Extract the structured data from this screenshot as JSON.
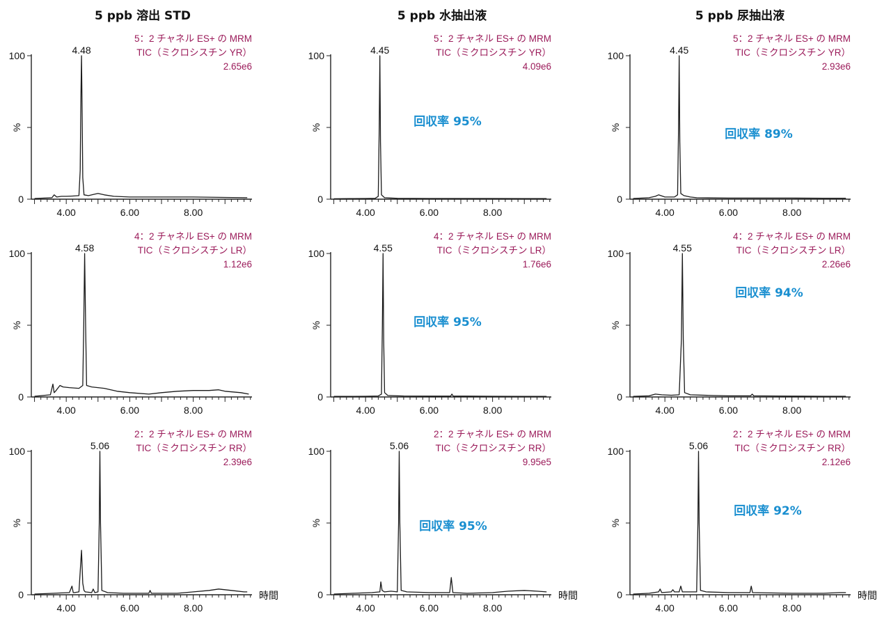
{
  "columns": [
    "5 ppb 溶出 STD",
    "5 ppb 水抽出液",
    "5 ppb 尿抽出液"
  ],
  "x_axis_label": "時間",
  "chart_data": [
    {
      "type": "line",
      "row": 0,
      "col": 0,
      "peak_rt": 4.48,
      "peak_label": "4.48",
      "info": [
        "5：2 チャネル ES+ の MRM",
        "TIC（ミクロシスチン YR）",
        "2.65e6"
      ],
      "recovery": "",
      "xticks": [
        "4.00",
        "6.00",
        "8.00"
      ],
      "yticks": [
        "0",
        "%",
        "100"
      ],
      "xlim": [
        2.9,
        9.85
      ],
      "ylim": [
        0,
        100
      ],
      "x": [
        3.0,
        3.55,
        3.62,
        3.7,
        3.85,
        4.0,
        4.2,
        4.4,
        4.44,
        4.46,
        4.48,
        4.5,
        4.52,
        4.56,
        4.7,
        4.9,
        5.0,
        5.2,
        5.5,
        6.0,
        7.0,
        8.0,
        9.0,
        9.7
      ],
      "y": [
        0.5,
        1,
        3,
        1.5,
        2,
        2,
        2.2,
        2.5,
        20,
        70,
        100,
        60,
        15,
        3,
        2.5,
        3.5,
        4,
        3,
        2,
        1.5,
        1.5,
        1.5,
        1.2,
        1
      ]
    },
    {
      "type": "line",
      "row": 0,
      "col": 1,
      "peak_rt": 4.45,
      "peak_label": "4.45",
      "info": [
        "5：2 チャネル ES+ の MRM",
        "TIC（ミクロシスチン YR）",
        "4.09e6"
      ],
      "recovery": "回収率 95%",
      "xticks": [
        "4.00",
        "6.00",
        "8.00"
      ],
      "yticks": [
        "0",
        "%",
        "100"
      ],
      "xlim": [
        2.9,
        9.85
      ],
      "ylim": [
        0,
        100
      ],
      "x": [
        3.0,
        3.5,
        4.0,
        4.3,
        4.4,
        4.43,
        4.45,
        4.47,
        4.5,
        4.6,
        5.0,
        6.0,
        7.0,
        8.0,
        9.0,
        9.7
      ],
      "y": [
        0.3,
        0.4,
        0.5,
        0.6,
        2,
        50,
        100,
        40,
        3,
        1,
        0.6,
        0.5,
        0.5,
        0.5,
        0.4,
        0.4
      ]
    },
    {
      "type": "line",
      "row": 0,
      "col": 2,
      "peak_rt": 4.45,
      "peak_label": "4.45",
      "info": [
        "5：2 チャネル ES+ の MRM",
        "TIC（ミクロシスチン YR）",
        "2.93e6"
      ],
      "recovery": "回収率 89%",
      "xticks": [
        "4.00",
        "6.00",
        "8.00"
      ],
      "yticks": [
        "0",
        "%",
        "100"
      ],
      "xlim": [
        2.9,
        9.85
      ],
      "ylim": [
        0,
        100
      ],
      "x": [
        3.0,
        3.5,
        3.7,
        3.8,
        4.0,
        4.3,
        4.4,
        4.43,
        4.45,
        4.47,
        4.5,
        4.6,
        4.8,
        5.0,
        6.0,
        7.0,
        8.0,
        9.0,
        9.7
      ],
      "y": [
        0.5,
        1,
        2,
        3,
        1.5,
        1.5,
        3,
        50,
        100,
        40,
        4,
        2.5,
        1.5,
        1,
        0.8,
        0.8,
        0.8,
        0.7,
        0.7
      ]
    },
    {
      "type": "line",
      "row": 1,
      "col": 0,
      "peak_rt": 4.58,
      "peak_label": "4.58",
      "info": [
        "4：2 チャネル ES+ の MRM",
        "TIC（ミクロシスチン LR）",
        "1.12e6"
      ],
      "recovery": "",
      "xticks": [
        "4.00",
        "6.00",
        "8.00"
      ],
      "yticks": [
        "0",
        "%",
        "100"
      ],
      "xlim": [
        2.9,
        9.85
      ],
      "ylim": [
        0,
        100
      ],
      "x": [
        3.0,
        3.5,
        3.58,
        3.62,
        3.66,
        3.8,
        3.9,
        4.1,
        4.4,
        4.52,
        4.55,
        4.58,
        4.61,
        4.64,
        4.8,
        5.2,
        5.6,
        6.0,
        6.6,
        7.0,
        7.5,
        8.0,
        8.5,
        8.8,
        9.0,
        9.5,
        9.75
      ],
      "y": [
        0.5,
        1.5,
        9,
        3,
        4,
        8,
        7,
        6.5,
        6,
        8,
        50,
        100,
        50,
        8,
        7,
        6,
        4,
        3,
        2,
        3,
        4,
        4.5,
        4.5,
        5,
        4,
        3,
        2
      ]
    },
    {
      "type": "line",
      "row": 1,
      "col": 1,
      "peak_rt": 4.55,
      "peak_label": "4.55",
      "info": [
        "4：2 チャネル ES+ の MRM",
        "TIC（ミクロシスチン LR）",
        "1.76e6"
      ],
      "recovery": "回収率 95%",
      "xticks": [
        "4.00",
        "6.00",
        "8.00"
      ],
      "yticks": [
        "0",
        "%",
        "100"
      ],
      "xlim": [
        2.9,
        9.85
      ],
      "ylim": [
        0,
        100
      ],
      "x": [
        3.0,
        3.6,
        4.0,
        4.4,
        4.5,
        4.53,
        4.55,
        4.57,
        4.6,
        4.7,
        5.2,
        6.0,
        6.68,
        6.72,
        6.76,
        7.2,
        8.0,
        9.0,
        9.7
      ],
      "y": [
        0.4,
        0.4,
        0.5,
        0.7,
        2,
        50,
        100,
        40,
        3,
        1,
        0.7,
        0.6,
        0.6,
        2,
        0.6,
        0.6,
        0.5,
        0.4,
        0.4
      ]
    },
    {
      "type": "line",
      "row": 1,
      "col": 2,
      "peak_rt": 4.55,
      "peak_label": "4.55",
      "info": [
        "4：2 チャネル ES+ の MRM",
        "TIC（ミクロシスチン LR）",
        "2.26e6"
      ],
      "recovery": "回収率 94%",
      "xticks": [
        "4.00",
        "6.00",
        "8.00"
      ],
      "yticks": [
        "0",
        "%",
        "100"
      ],
      "xlim": [
        2.9,
        9.85
      ],
      "ylim": [
        0,
        100
      ],
      "x": [
        3.0,
        3.5,
        3.7,
        3.9,
        4.2,
        4.45,
        4.52,
        4.55,
        4.58,
        4.62,
        4.8,
        5.5,
        6.0,
        6.7,
        6.75,
        6.8,
        7.5,
        8.0,
        9.0,
        9.7
      ],
      "y": [
        0.4,
        0.8,
        2,
        1.5,
        1.2,
        1.5,
        40,
        100,
        40,
        3,
        1.5,
        1,
        0.8,
        0.8,
        2,
        0.8,
        0.7,
        0.6,
        0.5,
        0.5
      ]
    },
    {
      "type": "line",
      "row": 2,
      "col": 0,
      "peak_rt": 5.06,
      "peak_label": "5.06",
      "info": [
        "2：2 チャネル ES+ の MRM",
        "TIC（ミクロシスチン RR）",
        "2.39e6"
      ],
      "recovery": "",
      "xticks": [
        "4.00",
        "6.00",
        "8.00"
      ],
      "yticks": [
        "0",
        "%",
        "100"
      ],
      "xlim": [
        2.9,
        9.85
      ],
      "ylim": [
        0,
        100
      ],
      "x": [
        3.0,
        3.6,
        4.1,
        4.18,
        4.22,
        4.26,
        4.4,
        4.48,
        4.52,
        4.56,
        4.6,
        4.8,
        4.85,
        4.9,
        5.0,
        5.04,
        5.06,
        5.08,
        5.12,
        5.3,
        5.8,
        6.6,
        6.64,
        6.68,
        7.5,
        8.0,
        8.5,
        8.8,
        9.2,
        9.6,
        9.7
      ],
      "y": [
        0.5,
        1,
        1.5,
        6,
        1.5,
        1.5,
        2,
        31,
        8,
        3,
        2,
        1.5,
        4,
        1.5,
        2,
        50,
        100,
        50,
        3,
        1.5,
        1,
        1,
        3,
        1,
        1,
        2,
        3,
        4,
        3,
        2,
        2
      ]
    },
    {
      "type": "line",
      "row": 2,
      "col": 1,
      "peak_rt": 5.06,
      "peak_label": "5.06",
      "info": [
        "2：2 チャネル ES+ の MRM",
        "TIC（ミクロシスチン RR）",
        "9.95e5"
      ],
      "recovery": "回収率 95%",
      "xticks": [
        "4.00",
        "6.00",
        "8.00"
      ],
      "yticks": [
        "0",
        "%",
        "100"
      ],
      "xlim": [
        2.9,
        9.85
      ],
      "ylim": [
        0,
        100
      ],
      "x": [
        3.0,
        3.6,
        4.2,
        4.45,
        4.48,
        4.52,
        4.6,
        4.8,
        5.0,
        5.04,
        5.06,
        5.08,
        5.12,
        5.3,
        6.0,
        6.65,
        6.7,
        6.75,
        7.2,
        8.0,
        8.5,
        9.0,
        9.4,
        9.7
      ],
      "y": [
        0.5,
        1,
        1.5,
        2,
        9,
        3,
        2,
        2.5,
        2,
        50,
        100,
        50,
        3,
        2,
        1.5,
        1.5,
        12,
        1.5,
        1,
        1.5,
        2.5,
        3,
        2.5,
        2
      ]
    },
    {
      "type": "line",
      "row": 2,
      "col": 2,
      "peak_rt": 5.06,
      "peak_label": "5.06",
      "info": [
        "2：2 チャネル ES+ の MRM",
        "TIC（ミクロシスチン RR）",
        "2.12e6"
      ],
      "recovery": "回収率 92%",
      "xticks": [
        "4.00",
        "6.00",
        "8.00"
      ],
      "yticks": [
        "0",
        "%",
        "100"
      ],
      "xlim": [
        2.9,
        9.85
      ],
      "ylim": [
        0,
        100
      ],
      "x": [
        3.0,
        3.5,
        3.8,
        3.85,
        3.9,
        4.2,
        4.25,
        4.3,
        4.45,
        4.5,
        4.55,
        4.7,
        5.0,
        5.04,
        5.06,
        5.08,
        5.12,
        5.3,
        6.0,
        6.68,
        6.72,
        6.76,
        7.5,
        8.0,
        9.0,
        9.5,
        9.7
      ],
      "y": [
        0.5,
        1,
        2,
        4,
        1.5,
        2,
        3.5,
        2,
        2,
        6,
        2,
        2,
        2,
        50,
        100,
        50,
        3,
        2,
        1.5,
        1.5,
        6,
        1.5,
        1.2,
        1,
        1,
        1.5,
        1.5
      ]
    }
  ]
}
